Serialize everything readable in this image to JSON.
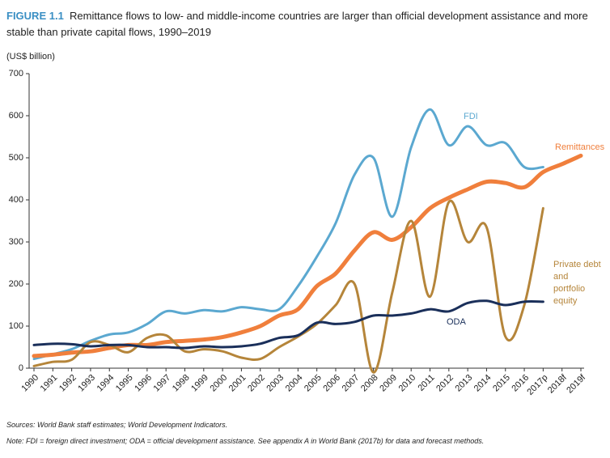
{
  "chart_data": {
    "type": "line",
    "figure_label": "FIGURE 1.1",
    "title": "Remittance flows to low- and middle-income countries are larger than official development assistance and more stable than private capital flows, 1990–2019",
    "y_axis_label": "(US$ billion)",
    "categories": [
      "1990",
      "1991",
      "1992",
      "1993",
      "1994",
      "1995",
      "1996",
      "1997",
      "1998",
      "1999",
      "2000",
      "2001",
      "2002",
      "2003",
      "2004",
      "2005",
      "2006",
      "2007",
      "2008",
      "2009",
      "2010",
      "2011",
      "2012",
      "2013",
      "2014",
      "2015",
      "2016",
      "2017p",
      "2018f",
      "2019f"
    ],
    "series": [
      {
        "name": "FDI",
        "color": "#5ba8d0",
        "values": [
          22,
          33,
          45,
          65,
          80,
          85,
          105,
          135,
          130,
          138,
          135,
          145,
          140,
          140,
          195,
          265,
          345,
          460,
          500,
          360,
          525,
          615,
          530,
          575,
          530,
          535,
          478,
          478,
          null,
          null
        ]
      },
      {
        "name": "Remittances",
        "color": "#f07f3c",
        "values": [
          29,
          32,
          37,
          40,
          48,
          55,
          55,
          62,
          65,
          68,
          74,
          85,
          100,
          125,
          140,
          195,
          225,
          280,
          323,
          305,
          335,
          380,
          405,
          425,
          443,
          440,
          430,
          466,
          485,
          505
        ]
      },
      {
        "name": "Private debt and portfolio equity",
        "color": "#b5853a",
        "values": [
          5,
          15,
          20,
          62,
          55,
          38,
          72,
          78,
          40,
          45,
          40,
          25,
          22,
          50,
          75,
          105,
          150,
          200,
          -10,
          180,
          350,
          170,
          395,
          300,
          335,
          75,
          150,
          380,
          null,
          null
        ]
      },
      {
        "name": "ODA",
        "color": "#1a2f5a",
        "values": [
          55,
          58,
          57,
          52,
          55,
          55,
          50,
          50,
          48,
          52,
          50,
          52,
          58,
          72,
          78,
          108,
          105,
          110,
          125,
          125,
          130,
          140,
          135,
          155,
          160,
          150,
          158,
          158,
          null,
          null
        ]
      }
    ],
    "ylim": [
      0,
      700
    ],
    "yticks": [
      0,
      100,
      200,
      300,
      400,
      500,
      600,
      700
    ],
    "sources": "Sources: World Bank staff estimates; World Development Indicators.",
    "note": "Note: FDI = foreign direct investment; ODA = official development assistance. See appendix A in World Bank (2017b) for data and forecast methods."
  }
}
